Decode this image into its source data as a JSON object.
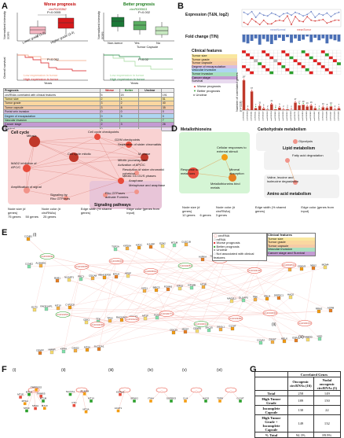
{
  "panels": {
    "A": {
      "letter": "A",
      "worse_title": "Worse prognosis",
      "worse_circ": "circR103392",
      "better_title": "Better prognosis",
      "better_circ": "circR005931",
      "ylabel_left": "Normalized intensity score",
      "ylabel_right": "Normalized intensity score",
      "left_groups": [
        "Lower grade (1,2)",
        "Higher grade (3,4)"
      ],
      "right_groups": [
        "Non-tumor",
        "Yes",
        "No"
      ],
      "right_group_caption": "Tumor Capsule",
      "pval_left": "P=0.0005",
      "pval_right": "P=0.002",
      "km_ylabel": "Overall survival",
      "km_xlabel": "Years",
      "km_pval_left": "P=0.002",
      "km_pval_right": "P=0.02",
      "km_legend_low": "Low expression in tumor",
      "km_legend_high": "High expression in tumor",
      "table_header": [
        "Prognosis",
        "Worse",
        "Better",
        "Unclear"
      ],
      "table_rows": [
        {
          "label": "circRNAs correlated with clinical features",
          "worse": "5",
          "better": "20",
          "unclear": "",
          "total": "191"
        },
        {
          "label": "Tumor size",
          "worse": "2",
          "better": "1",
          "unclear": "",
          "total": "51"
        },
        {
          "label": "Tumor grade",
          "worse": "3",
          "better": "2",
          "unclear": "",
          "total": "40"
        },
        {
          "label": "Tumor capsule",
          "worse": "3",
          "better": "8",
          "unclear": "",
          "total": "35"
        },
        {
          "label": "Portal vein invasion",
          "worse": "0",
          "better": "0",
          "unclear": "",
          "total": "0"
        },
        {
          "label": "Degree of encapsulation",
          "worse": "0",
          "better": "5",
          "unclear": "",
          "total": "0"
        },
        {
          "label": "Vascular invasion",
          "worse": "3",
          "better": "",
          "unclear": "",
          "total": "7"
        },
        {
          "label": "Cancer stage",
          "worse": "2",
          "better": "3",
          "unclear": "",
          "total": "26"
        },
        {
          "label": "Survival",
          "worse": "0",
          "better": "",
          "unclear": "",
          "total": ""
        }
      ]
    },
    "B": {
      "letter": "B",
      "expr_label": "Expression (T&N, log2)",
      "fc_label": "Fold change (T/N)",
      "clin_label": "Clinical features",
      "clin_items": [
        "Tumor size",
        "Tumor grade",
        "Tumor capsule",
        "Degree of encapsulation",
        "Vascular invasion",
        "Tumor invasion",
        "Cancer stage",
        "Survival"
      ],
      "legend_normal": "meanNormal",
      "legend_tumor": "meanTumor",
      "worse_label": "Worse prognosis",
      "better_label": "Better prognosis",
      "unclear_label": "Unclear",
      "ylabel_genes": "Number of correlated genes (n=113)",
      "xlabels": [
        "circR000011",
        "circR000084",
        "circR000091",
        "circR000211",
        "circR000243",
        "circR000297",
        "circR000318",
        "circR000394",
        "circR000440",
        "circR000512",
        "circR000590",
        "circR000612",
        "circR000668",
        "circR000721",
        "circR000776",
        "circR000834",
        "circR000895",
        "circR000943",
        "circR001002",
        "circR001061",
        "circR001123",
        "circR001186",
        "circR001247",
        "circR001305",
        "circR001366"
      ],
      "gene_counts": [
        107,
        2,
        67,
        7,
        15,
        6,
        2,
        21,
        3,
        9,
        2,
        3,
        0,
        27,
        17,
        19,
        13,
        16,
        7,
        1,
        10,
        8,
        13,
        2,
        7
      ],
      "fc_values": [
        -1.2,
        -1.4,
        -1.0,
        -0.6,
        -1.6,
        -0.7,
        -1.1,
        -1.5,
        -0.9,
        -0.5,
        -1.0,
        -0.4,
        -1.3,
        -0.6,
        -1.0,
        -0.8,
        -0.3,
        -1.2,
        -0.5,
        -0.9,
        -0.6,
        -1.4,
        -0.7,
        -0.9,
        -1.1
      ],
      "expr_normal": [
        12.8,
        12.5,
        12.9,
        12.1,
        12.7,
        12.4,
        12.3,
        12.7,
        12.5,
        12.2,
        12.6,
        12.7,
        12.4,
        12.8,
        12.6,
        12.3,
        12.5,
        12.9,
        12.1,
        12.6,
        12.4,
        12.7,
        12.2,
        12.6,
        12.8
      ],
      "expr_tumor": [
        11.4,
        11.1,
        11.9,
        11.5,
        11.1,
        11.7,
        11.2,
        11.2,
        11.6,
        11.7,
        11.6,
        12.3,
        11.1,
        12.2,
        11.6,
        11.5,
        12.2,
        11.7,
        11.6,
        11.7,
        11.8,
        11.3,
        11.5,
        11.7,
        11.7
      ],
      "marker_types": [
        "worse",
        "worse",
        "worse",
        "better",
        "worse",
        "worse",
        "unclear",
        "worse",
        "better",
        "worse",
        "worse",
        "unclear",
        "worse",
        "worse",
        "better",
        "better",
        "worse",
        "worse",
        "worse",
        "better",
        "worse",
        "worse",
        "better",
        "worse",
        "worse"
      ],
      "colors": {
        "normal": "#6f86c8",
        "tumor": "#d64541",
        "worse": "#e02020",
        "better": "#2ca02c",
        "unclear": "#999999"
      }
    },
    "C": {
      "letter": "C",
      "title_cell_cycle": "Cell cycle",
      "title_signaling": "Signaling pathways",
      "nodes": [
        "Mitosis",
        "Cell cycle checkpoints",
        "G2/M checkpoints",
        "Separation of sister chromatids",
        "M phase",
        "MAD2 inhibition of APC/C",
        "Mitotic prometaphase",
        "Activation of APC/C",
        "Amplification of signal",
        "Cell cycle mitotic",
        "Resolution of sister chromatid cohesion",
        "Mitotic G1-G1/S phases",
        "Anaphase",
        "Metaphase and anaphase",
        "Signaling by Rho GTPases",
        "Rho GTPases activate Formins"
      ],
      "legend_node_size": "Node size (# genes)",
      "legend_node_color": "Node color (# circRNAs)",
      "legend_edge_width": "Edge width (% shared genes)",
      "legend_edge_color": "Edge color (genes from input)",
      "size_items": [
        "75 genes",
        "50 genes",
        "25 genes"
      ]
    },
    "D": {
      "letter": "D",
      "title_metallothioneins": "Metallothioneins",
      "title_carb": "Carbohydrate metabolism",
      "title_lipid": "Lipid metabolism",
      "title_amino": "Amino acid metabolism",
      "nodes": [
        "Cellular responses to external stimuli",
        "Response to metal ions",
        "Mineral absorption",
        "Metallothioneins bind metals",
        "Glycolysis",
        "Fatty acid degradation",
        "Valine, leucine and isoleucine degradation",
        "Glutathione metabolism"
      ],
      "legend_node_size": "Node size (# genes)",
      "legend_node_color": "Node color (# circRNAs)",
      "legend_edge_width": "Edge width (% shared genes)",
      "legend_edge_color": "Edge color (genes from input)",
      "size_items": [
        "12 genes",
        "6 genes",
        "3 genes"
      ]
    },
    "E": {
      "letter": "E",
      "sub_i": "(i)",
      "sub_ii": "(ii)",
      "sub_iii": "(iii)",
      "legend_items": [
        "circRNA",
        "mRNA",
        "Worse prognosis",
        "Better prognosis",
        "Unclear",
        "Not associated with clinical features"
      ],
      "clin_legend": [
        "Clinical features",
        "Tumor size",
        "Tumor grade",
        "Tumor capsule",
        "Vascular invasion",
        "Cancer stage and Survival"
      ],
      "gene_labels": [
        "CCNB1",
        "BUB1",
        "CDK1",
        "TOP2A",
        "KIF11",
        "CDC20",
        "AURKA",
        "MAD2L1",
        "CCNA2",
        "PLK1",
        "RRM2",
        "CENPF",
        "NUSAP1",
        "TTK",
        "KIF20A",
        "BIRC5",
        "MKI67",
        "NCAPG",
        "DLGAP5",
        "ZWINT",
        "CDKN3",
        "ASPM",
        "HMMR",
        "PRC1",
        "TPX2",
        "KIF2C",
        "FOXM1",
        "CENPE",
        "UBE2C",
        "PBK",
        "MELK",
        "NEK2",
        "ECT2",
        "KIF4A",
        "CDCA8",
        "RACGAP1",
        "HJURP",
        "KIF15",
        "SPC25",
        "CKAP2L",
        "ANLN",
        "ESPL1",
        "MCM4",
        "RAD51AP1",
        "GINS2",
        "ARHGEF39",
        "CDCA3",
        "EZH2",
        "KIF18B",
        "SGOL1",
        "OIP5",
        "DEPDC1",
        "FAM83D",
        "CCNE2",
        "MT1X",
        "MT2A",
        "MT1G",
        "MT1F",
        "MT1M",
        "MT1E",
        "GLYAT",
        "ACADS",
        "HAO2",
        "HGD",
        "ALDH8A1",
        "CYP2C8",
        "SLC22A1",
        "APOF",
        "FCN3",
        "CLEC1B"
      ],
      "circ_labels": [
        "circR103392",
        "circR100055",
        "circR105003",
        "circR005931",
        "circR102053",
        "circR104049",
        "circR102138",
        "circR000512",
        "circR101541",
        "circR104338",
        "circR101208",
        "circR100771",
        "circR104013",
        "circR103380",
        "circR104030",
        "circR100470"
      ]
    },
    "F": {
      "letter": "F",
      "subs": [
        {
          "tag": "(i)",
          "genes": [
            "MT1M",
            "MT1X",
            "MT2A",
            "MT1F",
            "MT1H",
            "MT1E",
            "MT1G",
            "TMPRSS2",
            "TRIM55"
          ]
        },
        {
          "tag": "(ii)",
          "genes": [
            "MT1X",
            "MT2A",
            "CTH",
            "SLC7A1",
            "ACADM"
          ]
        },
        {
          "tag": "(iii)",
          "genes": [
            "SPHK2",
            "ACAT1",
            "IGFALS"
          ]
        },
        {
          "tag": "(iv)",
          "genes": [
            "SORBS3",
            "ITIH4"
          ]
        },
        {
          "tag": "(v)",
          "genes": [
            "HAO2",
            "CLI4"
          ]
        },
        {
          "tag": "(vi)",
          "genes": [
            "GLYAT",
            "TDR8"
          ]
        }
      ]
    },
    "G": {
      "letter": "G",
      "header_top": "Correlated Genes",
      "col_onco": "Oncogenic circRNAs (16)",
      "col_nodal": "Nodal oncogenic circRNAs (5)",
      "rows": [
        {
          "label": "Total",
          "onco": "258",
          "nodal": "149"
        },
        {
          "label": "High Tumor Grade",
          "onco": "189",
          "nodal": "150"
        },
        {
          "label": "Incomplete Capsule",
          "onco": "130",
          "nodal": "22"
        },
        {
          "label": "High Tumor Grade + Incomplete Capsule",
          "onco": "149",
          "nodal": "132"
        },
        {
          "label": "% Total",
          "onco": "94.3%",
          "nodal": "89.9%"
        }
      ]
    }
  }
}
